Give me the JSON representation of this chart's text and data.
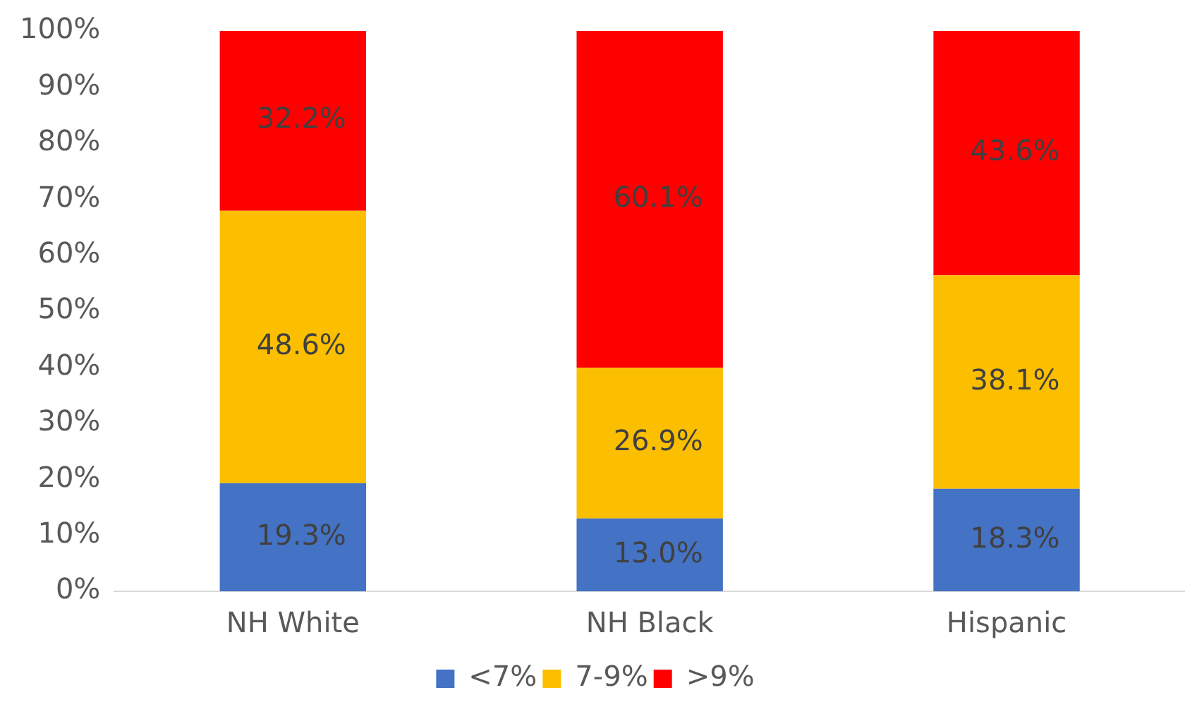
{
  "chart_data": {
    "type": "bar",
    "stacked": true,
    "categories": [
      "NH White",
      "NH Black",
      "Hispanic"
    ],
    "series": [
      {
        "name": "<7%",
        "color": "#4472c4",
        "values": [
          19.3,
          13.0,
          18.3
        ],
        "value_labels": [
          "19.3%",
          "13.0%",
          "18.3%"
        ]
      },
      {
        "name": "7-9%",
        "color": "#fbbf00",
        "values": [
          48.6,
          26.9,
          38.1
        ],
        "value_labels": [
          "48.6%",
          "26.9%",
          "38.1%"
        ]
      },
      {
        "name": ">9%",
        "color": "#ff0000",
        "values": [
          32.2,
          60.1,
          43.6
        ],
        "value_labels": [
          "32.2%",
          "60.1%",
          "43.6%"
        ]
      }
    ],
    "ylim": [
      0,
      100
    ],
    "yticks": [
      {
        "value": 0,
        "label": "0%"
      },
      {
        "value": 10,
        "label": "10%"
      },
      {
        "value": 20,
        "label": "20%"
      },
      {
        "value": 30,
        "label": "30%"
      },
      {
        "value": 40,
        "label": "40%"
      },
      {
        "value": 50,
        "label": "50%"
      },
      {
        "value": 60,
        "label": "60%"
      },
      {
        "value": 70,
        "label": "70%"
      },
      {
        "value": 80,
        "label": "80%"
      },
      {
        "value": 90,
        "label": "90%"
      },
      {
        "value": 100,
        "label": "100%"
      }
    ],
    "grid": false,
    "legend": "bottom"
  }
}
